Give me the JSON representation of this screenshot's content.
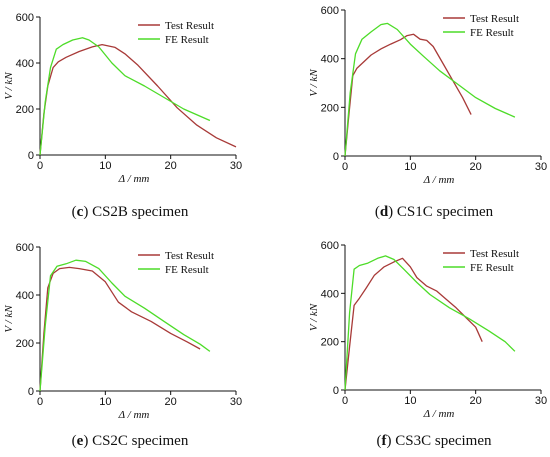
{
  "colors": {
    "test": "#a83a38",
    "fe": "#4ddc28",
    "axis": "#111111"
  },
  "chart_data": [
    {
      "type": "line",
      "caption": {
        "letter": "c",
        "text": "CS2B specimen"
      },
      "xlabel": "Δ / mm",
      "ylabel": "V / kN",
      "xlim": [
        0,
        30
      ],
      "ylim": [
        0,
        600
      ],
      "xticks": [
        "0",
        "10",
        "20",
        "30"
      ],
      "yticks": [
        "0",
        "200",
        "400",
        "600"
      ],
      "legend_position": "top-right",
      "series": [
        {
          "name": "Test Result",
          "color": "#a83a38",
          "x": [
            0,
            0.6,
            1.2,
            2,
            2.8,
            4,
            6,
            8,
            9.5,
            11.5,
            13,
            15,
            18,
            21,
            24,
            27,
            30
          ],
          "y": [
            0,
            180,
            300,
            380,
            405,
            425,
            450,
            470,
            480,
            468,
            440,
            390,
            300,
            205,
            130,
            75,
            35
          ]
        },
        {
          "name": "FE Result",
          "color": "#4ddc28",
          "x": [
            0,
            0.8,
            1.6,
            2.5,
            3.5,
            5,
            6.5,
            7.5,
            9,
            11,
            13,
            16,
            19,
            22,
            26
          ],
          "y": [
            0,
            230,
            380,
            460,
            480,
            500,
            510,
            500,
            470,
            400,
            345,
            300,
            250,
            200,
            150
          ]
        }
      ]
    },
    {
      "type": "line",
      "caption": {
        "letter": "d",
        "text": "CS1C specimen"
      },
      "xlabel": "Δ / mm",
      "ylabel": "V / kN",
      "xlim": [
        0,
        30
      ],
      "ylim": [
        0,
        600
      ],
      "xticks": [
        "0",
        "10",
        "20",
        "30"
      ],
      "yticks": [
        "0",
        "200",
        "400",
        "600"
      ],
      "legend_position": "top-right",
      "series": [
        {
          "name": "Test Result",
          "color": "#a83a38",
          "x": [
            0,
            0.6,
            1.2,
            1.8,
            2.6,
            4,
            5.5,
            7,
            8.5,
            9.5,
            10.5,
            11.5,
            12.5,
            13.5,
            15,
            16.5,
            18,
            19.3
          ],
          "y": [
            0,
            170,
            330,
            360,
            380,
            415,
            440,
            460,
            478,
            495,
            500,
            480,
            475,
            450,
            380,
            310,
            240,
            170
          ]
        },
        {
          "name": "FE Result",
          "color": "#4ddc28",
          "x": [
            0,
            0.8,
            1.6,
            2.6,
            4,
            5.5,
            6.5,
            8,
            10,
            12,
            14.5,
            17,
            20,
            23,
            26
          ],
          "y": [
            0,
            260,
            420,
            480,
            510,
            540,
            545,
            520,
            460,
            410,
            350,
            300,
            240,
            195,
            160
          ]
        }
      ]
    },
    {
      "type": "line",
      "caption": {
        "letter": "e",
        "text": "CS2C specimen"
      },
      "xlabel": "Δ / mm",
      "ylabel": "V / kN",
      "xlim": [
        0,
        30
      ],
      "ylim": [
        0,
        600
      ],
      "xticks": [
        "0",
        "10",
        "20",
        "30"
      ],
      "yticks": [
        "0",
        "200",
        "400",
        "600"
      ],
      "legend_position": "top-right",
      "series": [
        {
          "name": "Test Result",
          "color": "#a83a38",
          "x": [
            0,
            0.6,
            1.2,
            2,
            3,
            4.5,
            6,
            8,
            10,
            12,
            14,
            17,
            20,
            22.5,
            24.5
          ],
          "y": [
            0,
            240,
            430,
            490,
            510,
            515,
            510,
            500,
            455,
            370,
            330,
            290,
            240,
            205,
            175
          ]
        },
        {
          "name": "FE Result",
          "color": "#4ddc28",
          "x": [
            0,
            0.8,
            1.6,
            2.6,
            4,
            5.5,
            7,
            9,
            11,
            13,
            16,
            19,
            22,
            24.5,
            26
          ],
          "y": [
            0,
            270,
            480,
            520,
            530,
            545,
            540,
            510,
            450,
            395,
            345,
            290,
            235,
            195,
            165
          ]
        }
      ]
    },
    {
      "type": "line",
      "caption": {
        "letter": "f",
        "text": "CS3C specimen"
      },
      "xlabel": "Δ / mm",
      "ylabel": "V / kN",
      "xlim": [
        0,
        30
      ],
      "ylim": [
        0,
        600
      ],
      "xticks": [
        "0",
        "10",
        "20",
        "30"
      ],
      "yticks": [
        "0",
        "200",
        "400",
        "600"
      ],
      "legend_position": "top-right",
      "series": [
        {
          "name": "Test Result",
          "color": "#a83a38",
          "x": [
            0,
            0.7,
            1.4,
            2.2,
            3.2,
            4.5,
            6,
            7.5,
            8.8,
            10,
            11,
            12.5,
            14,
            15.5,
            17,
            18.5,
            20,
            21
          ],
          "y": [
            0,
            180,
            350,
            380,
            420,
            475,
            510,
            530,
            545,
            510,
            465,
            430,
            410,
            375,
            340,
            300,
            260,
            200
          ]
        },
        {
          "name": "FE Result",
          "color": "#4ddc28",
          "x": [
            0,
            0.7,
            1.4,
            2.2,
            3.5,
            5,
            6.2,
            7.5,
            9,
            11,
            13,
            16,
            19,
            22,
            24.5,
            26
          ],
          "y": [
            0,
            320,
            500,
            515,
            525,
            545,
            555,
            540,
            500,
            445,
            395,
            340,
            295,
            245,
            200,
            160
          ]
        }
      ]
    }
  ]
}
